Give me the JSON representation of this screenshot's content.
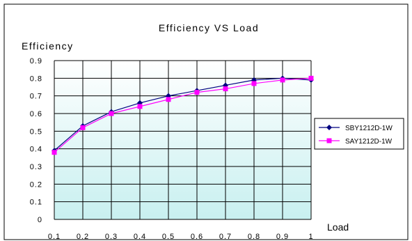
{
  "chart_data": {
    "type": "line",
    "title": "Efficiency VS Load",
    "ylabel": "Efficiency",
    "xlabel": "Load",
    "categories": [
      "0.1",
      "0.2",
      "0.3",
      "0.4",
      "0.5",
      "0.6",
      "0.7",
      "0.8",
      "0.9",
      "1"
    ],
    "y_ticks": [
      "0",
      "0.1",
      "0.2",
      "0.3",
      "0.4",
      "0.5",
      "0.6",
      "0.7",
      "0.8",
      "0.9"
    ],
    "ylim": [
      0,
      0.9
    ],
    "grid": true,
    "legend_position": "right",
    "series": [
      {
        "name": "SBY1212D-1W",
        "color": "#000080",
        "marker": "diamond",
        "values": [
          0.39,
          0.53,
          0.61,
          0.66,
          0.7,
          0.73,
          0.76,
          0.79,
          0.8,
          0.79
        ]
      },
      {
        "name": "SAY1212D-1W",
        "color": "#ff00ff",
        "marker": "square",
        "values": [
          0.38,
          0.52,
          0.6,
          0.64,
          0.68,
          0.72,
          0.74,
          0.77,
          0.79,
          0.8
        ]
      }
    ],
    "colors": {
      "plot_top": "#ffffff",
      "plot_bottom": "#c8f0f0",
      "grid": "#000000"
    }
  }
}
